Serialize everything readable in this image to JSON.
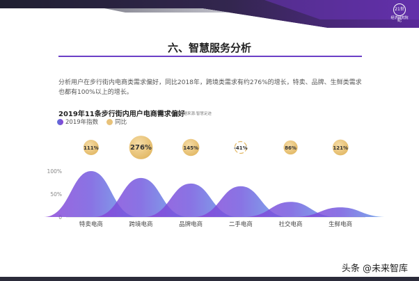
{
  "header": {
    "logo_mark": "21世纪",
    "logo_text": "经济研究院"
  },
  "section_title": "六、智慧服务分析",
  "intro_text": "分析用户在步行街内电商类需求偏好，同比2018年，跨境类需求有约276%的增长，特卖、品牌、生鲜类需求也都有100%以上的增长。",
  "chart_title": "2019年11条步行街内用户电商需求偏好",
  "source_note": "数据来源:智慧足迹",
  "legend": {
    "index_label": "2019年指数",
    "yoy_label": "同比"
  },
  "colors": {
    "accent_purple": "#6b3fc6",
    "wave_start": "#8a3fd6",
    "wave_end": "#5ea0e8",
    "badge_gold": "#e8c27a"
  },
  "chart_data": {
    "type": "area",
    "categories": [
      "特卖电商",
      "跨境电商",
      "品牌电商",
      "二手电商",
      "社交电商",
      "生鲜电商"
    ],
    "series": [
      {
        "name": "2019年指数",
        "values": [
          100,
          85,
          73,
          67,
          33,
          21
        ]
      }
    ],
    "yoy": [
      111,
      276,
      145,
      -41,
      86,
      121
    ],
    "yoy_labels": [
      "111%",
      "276%",
      "145%",
      "-41%",
      "86%",
      "121%"
    ],
    "yticks": [
      "100%",
      "50%",
      "0"
    ],
    "ylim": [
      0,
      100
    ]
  },
  "watermark": "头条 @未来智库"
}
